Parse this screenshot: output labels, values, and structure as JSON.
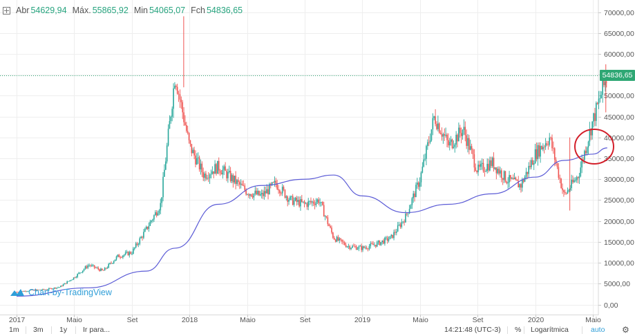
{
  "header": {
    "open_label": "Abr",
    "open_value": "54629,94",
    "high_label": "Máx.",
    "high_value": "55865,92",
    "low_label": "Min",
    "low_value": "54065,07",
    "close_label": "Fch",
    "close_value": "54836,65"
  },
  "watermark": "Chart-by-TradingView",
  "current_price_tag": "54836,65",
  "toolbar": {
    "ranges": [
      "1m",
      "3m",
      "1y"
    ],
    "goto_label": "Ir para...",
    "time": "14:21:48 (UTC-3)",
    "percent_label": "%",
    "log_label": "Logarítmica",
    "auto_label": "auto",
    "settings_icon": "gear-icon"
  },
  "colors": {
    "up": "#26a69a",
    "down": "#ef5350",
    "moving_average": "#5b5bd6",
    "price_line": "#2ea774",
    "annotation": "#d31f2a"
  },
  "chart_data": {
    "type": "line",
    "title": "",
    "scale": "linear",
    "grid": true,
    "price_axis_side": "right",
    "ylim": [
      -1500,
      71000
    ],
    "y_ticks": [
      "70000,00",
      "65000,00",
      "60000,00",
      "55000,00",
      "50000,00",
      "45000,00",
      "40000,00",
      "35000,00",
      "30000,00",
      "25000,00",
      "20000,00",
      "15000,00",
      "10000,00",
      "5000,00",
      "0,00"
    ],
    "x_ticks": [
      "2017",
      "Maio",
      "Set",
      "2018",
      "Maio",
      "Set",
      "2019",
      "Maio",
      "Set",
      "2020",
      "Maio"
    ],
    "series": [
      {
        "style": "candles",
        "x": [
          "2017-01",
          "2017-02",
          "2017-03",
          "2017-04",
          "2017-05",
          "2017-06",
          "2017-07",
          "2017-08",
          "2017-09",
          "2017-10",
          "2017-11",
          "2017-12",
          "2018-01",
          "2018-02",
          "2018-03",
          "2018-04",
          "2018-05",
          "2018-06",
          "2018-07",
          "2018-08",
          "2018-09",
          "2018-10",
          "2018-11",
          "2018-12",
          "2019-01",
          "2019-02",
          "2019-03",
          "2019-04",
          "2019-05",
          "2019-06",
          "2019-07",
          "2019-08",
          "2019-09",
          "2019-10",
          "2019-11",
          "2019-12",
          "2020-01",
          "2020-02",
          "2020-03",
          "2020-04",
          "2020-05",
          "2020-06"
        ],
        "values": [
          3000,
          3400,
          3600,
          4200,
          6500,
          9500,
          8000,
          11500,
          12500,
          18000,
          24000,
          55000,
          38000,
          31000,
          33000,
          30000,
          27000,
          26000,
          29000,
          25000,
          24000,
          25000,
          16000,
          14000,
          13500,
          14500,
          16000,
          21000,
          30000,
          45000,
          38000,
          42000,
          32000,
          34000,
          30000,
          28500,
          36000,
          40000,
          26000,
          31000,
          44000,
          54836.65
        ],
        "y_max": 69000,
        "y_min": 2000
      },
      {
        "style": "line",
        "x": [
          "2017-01",
          "2017-06",
          "2017-10",
          "2017-12",
          "2018-03",
          "2018-06",
          "2018-09",
          "2018-11",
          "2019-01",
          "2019-04",
          "2019-07",
          "2019-10",
          "2020-01",
          "2020-03",
          "2020-05",
          "2020-06"
        ],
        "values": [
          2000,
          4000,
          8000,
          13500,
          24000,
          28500,
          30000,
          31000,
          26000,
          22000,
          24000,
          26500,
          30500,
          34500,
          36000,
          37500
        ]
      }
    ],
    "current_price": 54836.65
  }
}
